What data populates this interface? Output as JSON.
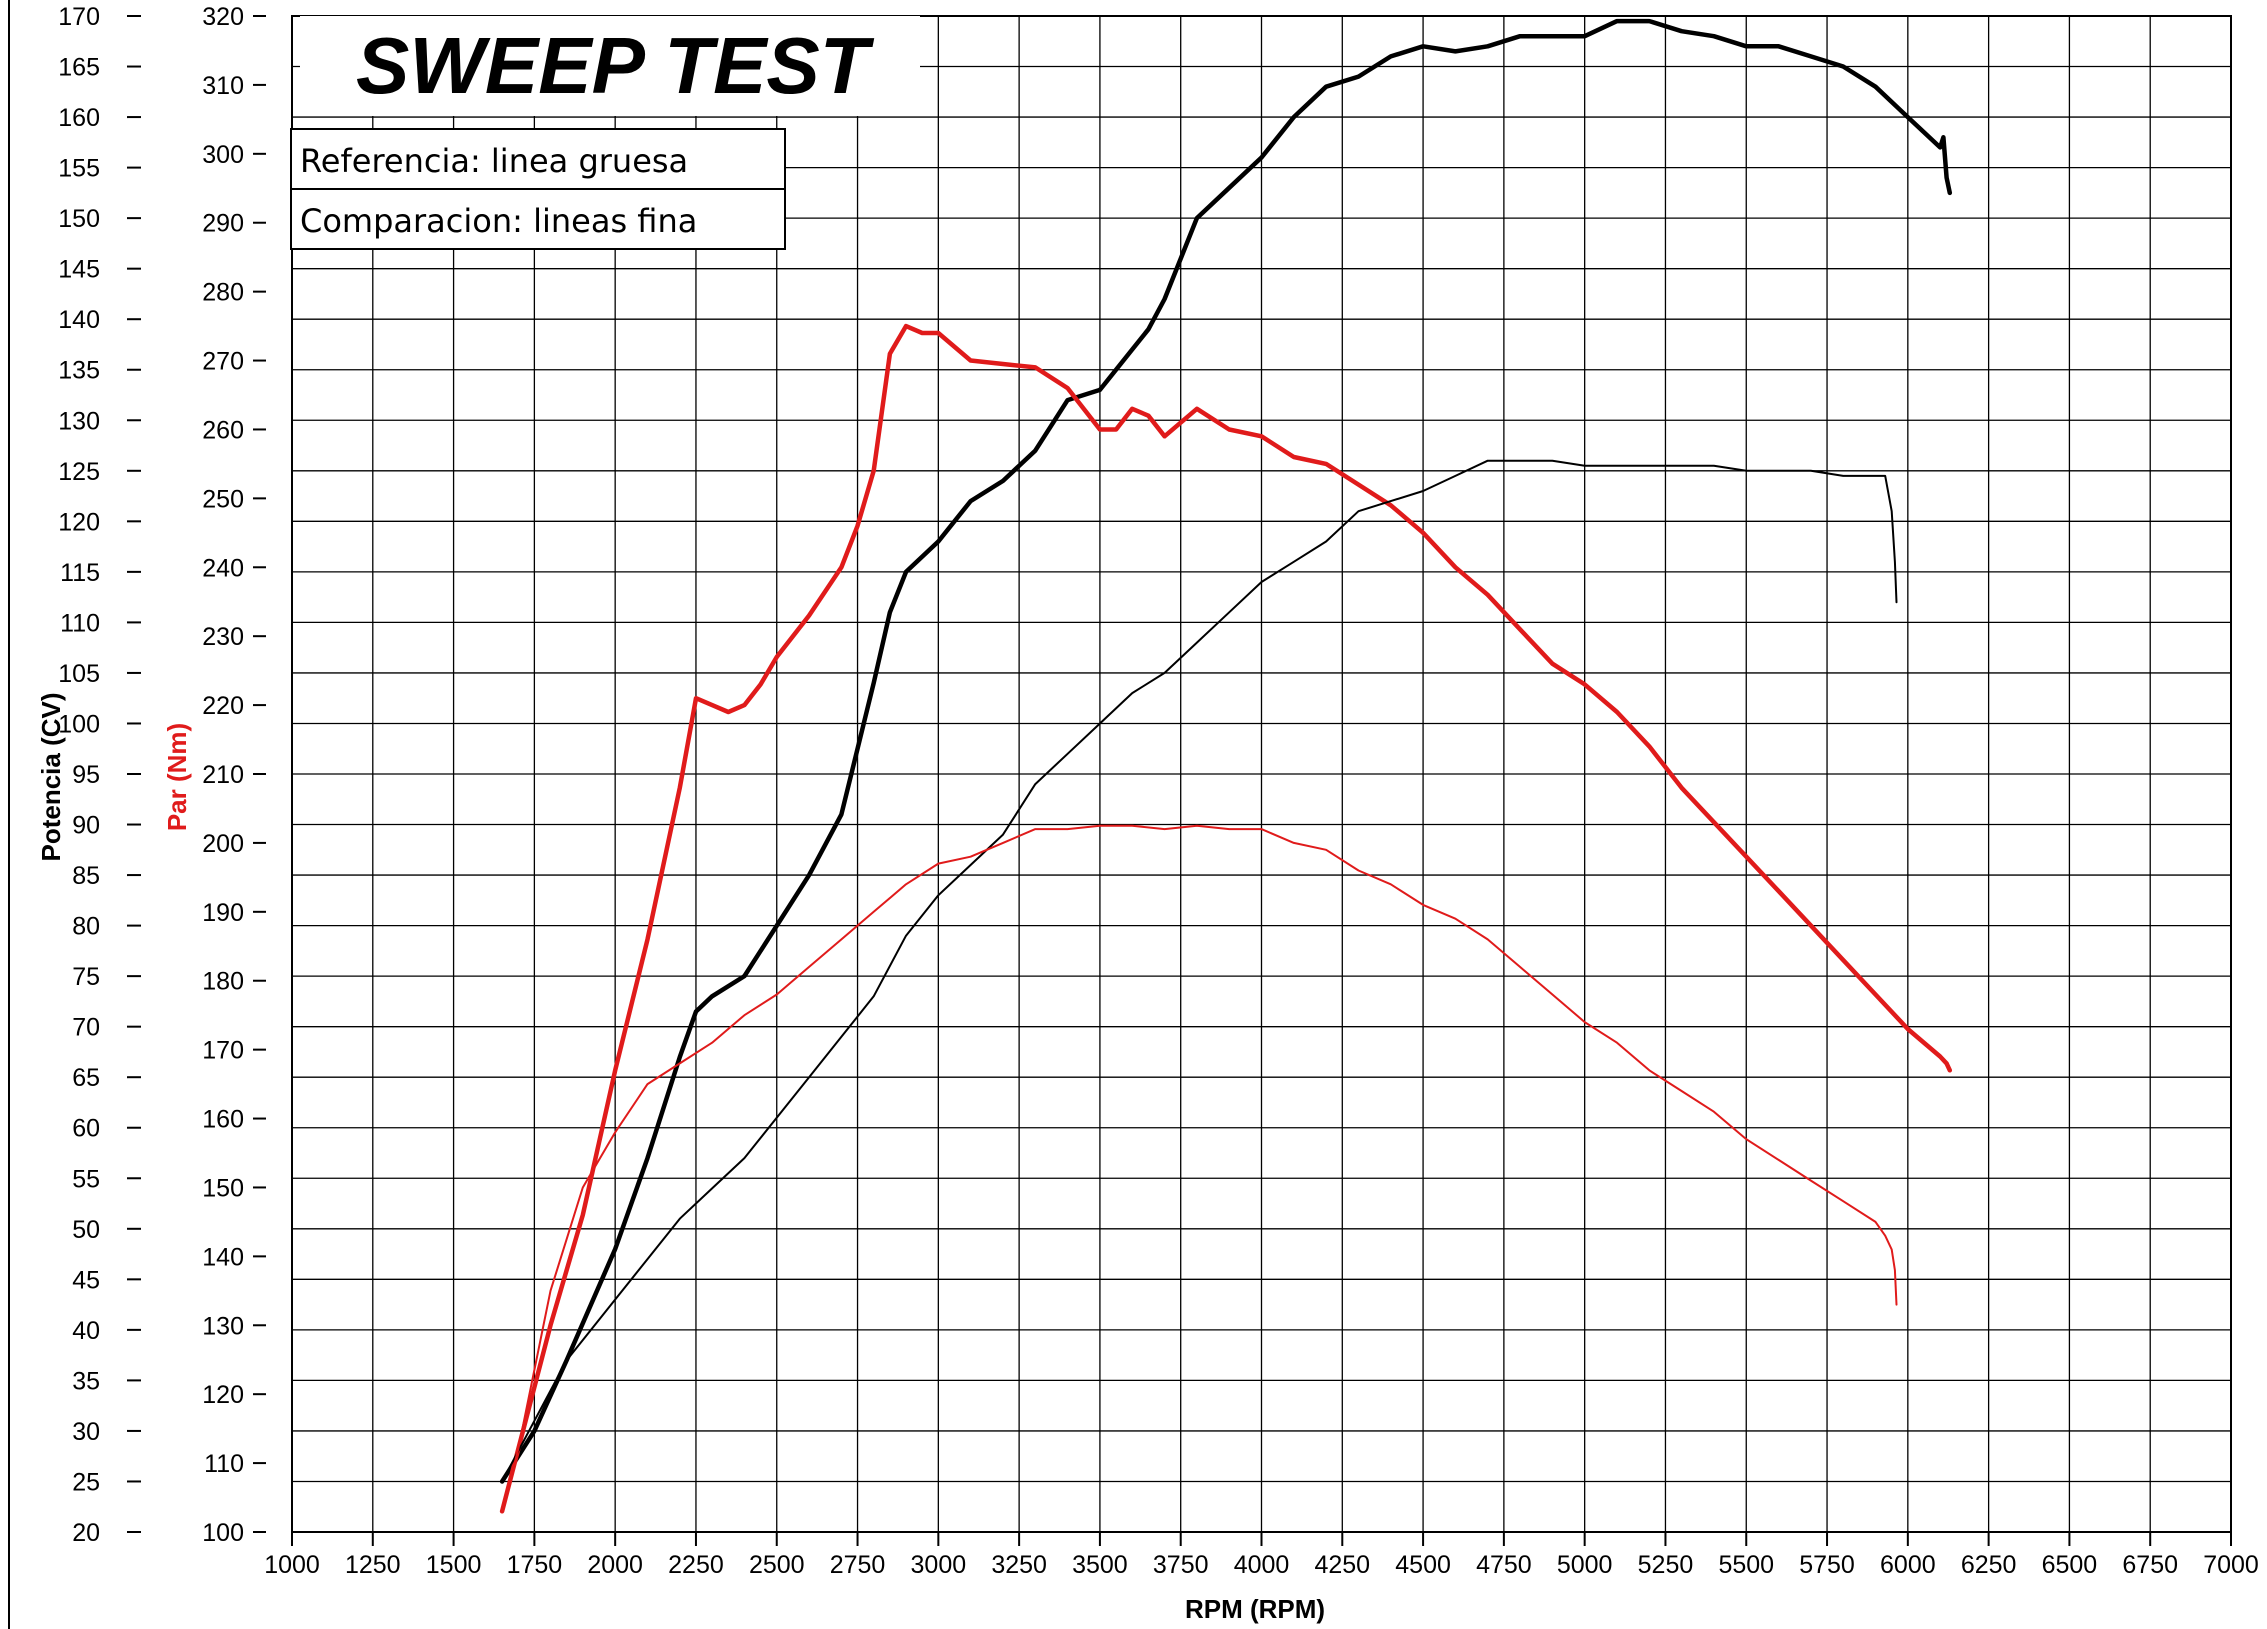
{
  "chart_data": {
    "type": "line",
    "title": "SWEEP TEST",
    "legend": [
      {
        "label": "Referencia: linea gruesa"
      },
      {
        "label": "Comparacion: lineas fina"
      }
    ],
    "legend_position": "top-left",
    "grid": true,
    "x_axis": {
      "label": "RPM (RPM)",
      "range": [
        1000,
        7000
      ],
      "ticks": [
        1000,
        1250,
        1500,
        1750,
        2000,
        2250,
        2500,
        2750,
        3000,
        3250,
        3500,
        3750,
        4000,
        4250,
        4500,
        4750,
        5000,
        5250,
        5500,
        5750,
        6000,
        6250,
        6500,
        6750,
        7000
      ]
    },
    "y_axis_left": {
      "label": "Potencia (CV)",
      "color": "#000000",
      "range": [
        20,
        170
      ],
      "ticks": [
        20,
        25,
        30,
        35,
        40,
        45,
        50,
        55,
        60,
        65,
        70,
        75,
        80,
        85,
        90,
        95,
        100,
        105,
        110,
        115,
        120,
        125,
        130,
        135,
        140,
        145,
        150,
        155,
        160,
        165,
        170
      ]
    },
    "y_axis_right": {
      "label": "Par (Nm)",
      "color": "#e01b1b",
      "range": [
        100,
        320
      ],
      "ticks": [
        100,
        110,
        120,
        130,
        140,
        150,
        160,
        170,
        180,
        190,
        200,
        210,
        220,
        230,
        240,
        250,
        260,
        270,
        280,
        290,
        300,
        310,
        320
      ]
    },
    "series": [
      {
        "axis": "power",
        "color": "#000000",
        "weight": "thick",
        "x": [
          1650,
          1750,
          1850,
          2000,
          2100,
          2200,
          2250,
          2300,
          2400,
          2500,
          2600,
          2700,
          2800,
          2850,
          2900,
          3000,
          3100,
          3200,
          3300,
          3400,
          3500,
          3600,
          3650,
          3700,
          3800,
          3900,
          4000,
          4100,
          4200,
          4300,
          4400,
          4500,
          4600,
          4700,
          4800,
          4900,
          5000,
          5100,
          5200,
          5300,
          5400,
          5500,
          5600,
          5700,
          5800,
          5900,
          6000,
          6100,
          6110,
          6120,
          6130
        ],
        "y": [
          25,
          30,
          37,
          48,
          57,
          67,
          71.5,
          73,
          75,
          80,
          85,
          91,
          104,
          111,
          115,
          118,
          122,
          124,
          127,
          132,
          133,
          137,
          139,
          142,
          150,
          153,
          156,
          160,
          163,
          164,
          166,
          167,
          166.5,
          167,
          168,
          168,
          168,
          169.5,
          169.5,
          168.5,
          168,
          167,
          167,
          166,
          165,
          163,
          160,
          157,
          158,
          154,
          152.5
        ]
      },
      {
        "axis": "torque",
        "color": "#e01b1b",
        "weight": "thick",
        "x": [
          1650,
          1700,
          1800,
          1900,
          2000,
          2100,
          2200,
          2250,
          2300,
          2350,
          2400,
          2450,
          2500,
          2600,
          2700,
          2750,
          2800,
          2850,
          2900,
          2950,
          3000,
          3100,
          3200,
          3300,
          3400,
          3500,
          3550,
          3600,
          3650,
          3700,
          3800,
          3900,
          4000,
          4100,
          4200,
          4300,
          4400,
          4500,
          4600,
          4700,
          4800,
          4900,
          5000,
          5100,
          5200,
          5300,
          5400,
          5500,
          5600,
          5700,
          5800,
          5900,
          6000,
          6100,
          6120,
          6130
        ],
        "y": [
          103,
          112,
          130,
          146,
          167,
          186,
          208,
          221,
          220,
          219,
          220,
          223,
          227,
          233,
          240,
          246,
          254,
          271,
          275,
          274,
          274,
          270,
          269.5,
          269,
          266,
          260,
          260,
          263,
          262,
          259,
          263,
          260,
          259,
          256,
          255,
          252,
          249,
          245,
          240,
          236,
          231,
          226,
          223,
          219,
          214,
          208,
          203,
          198,
          193,
          188,
          183,
          178,
          173,
          169,
          168,
          167
        ]
      },
      {
        "axis": "power",
        "color": "#000000",
        "weight": "thin",
        "x": [
          1650,
          1750,
          1850,
          2000,
          2100,
          2200,
          2300,
          2400,
          2500,
          2600,
          2700,
          2800,
          2900,
          3000,
          3100,
          3200,
          3300,
          3400,
          3500,
          3600,
          3700,
          3800,
          3900,
          4000,
          4100,
          4200,
          4300,
          4400,
          4500,
          4600,
          4700,
          4800,
          4900,
          5000,
          5100,
          5200,
          5300,
          5400,
          5500,
          5600,
          5700,
          5800,
          5900,
          5930,
          5950,
          5960,
          5965
        ],
        "y": [
          25,
          31,
          37,
          43,
          47,
          51,
          54,
          57,
          61,
          65,
          69,
          73,
          79,
          83,
          86,
          89,
          94,
          97,
          100,
          103,
          105,
          108,
          111,
          114,
          116,
          118,
          121,
          122,
          123,
          124.5,
          126,
          126,
          126,
          125.5,
          125.5,
          125.5,
          125.5,
          125.5,
          125,
          125,
          125,
          124.5,
          124.5,
          124.5,
          121,
          116,
          112
        ]
      },
      {
        "axis": "torque",
        "color": "#e01b1b",
        "weight": "thin",
        "x": [
          1650,
          1700,
          1800,
          1900,
          2000,
          2100,
          2200,
          2300,
          2400,
          2500,
          2600,
          2700,
          2800,
          2900,
          3000,
          3100,
          3200,
          3300,
          3400,
          3500,
          3600,
          3700,
          3800,
          3900,
          4000,
          4100,
          4200,
          4300,
          4400,
          4500,
          4600,
          4700,
          4800,
          4900,
          5000,
          5100,
          5200,
          5300,
          5400,
          5500,
          5600,
          5700,
          5800,
          5900,
          5930,
          5950,
          5960,
          5965
        ],
        "y": [
          103,
          112,
          135,
          150,
          158,
          165,
          168,
          171,
          175,
          178,
          182,
          186,
          190,
          194,
          197,
          198,
          200,
          202,
          202,
          202.5,
          202.5,
          202,
          202.5,
          202,
          202,
          200,
          199,
          196,
          194,
          191,
          189,
          186,
          182,
          178,
          174,
          171,
          167,
          164,
          161,
          157,
          154,
          151,
          148,
          145,
          143,
          141,
          138,
          133
        ]
      }
    ]
  }
}
